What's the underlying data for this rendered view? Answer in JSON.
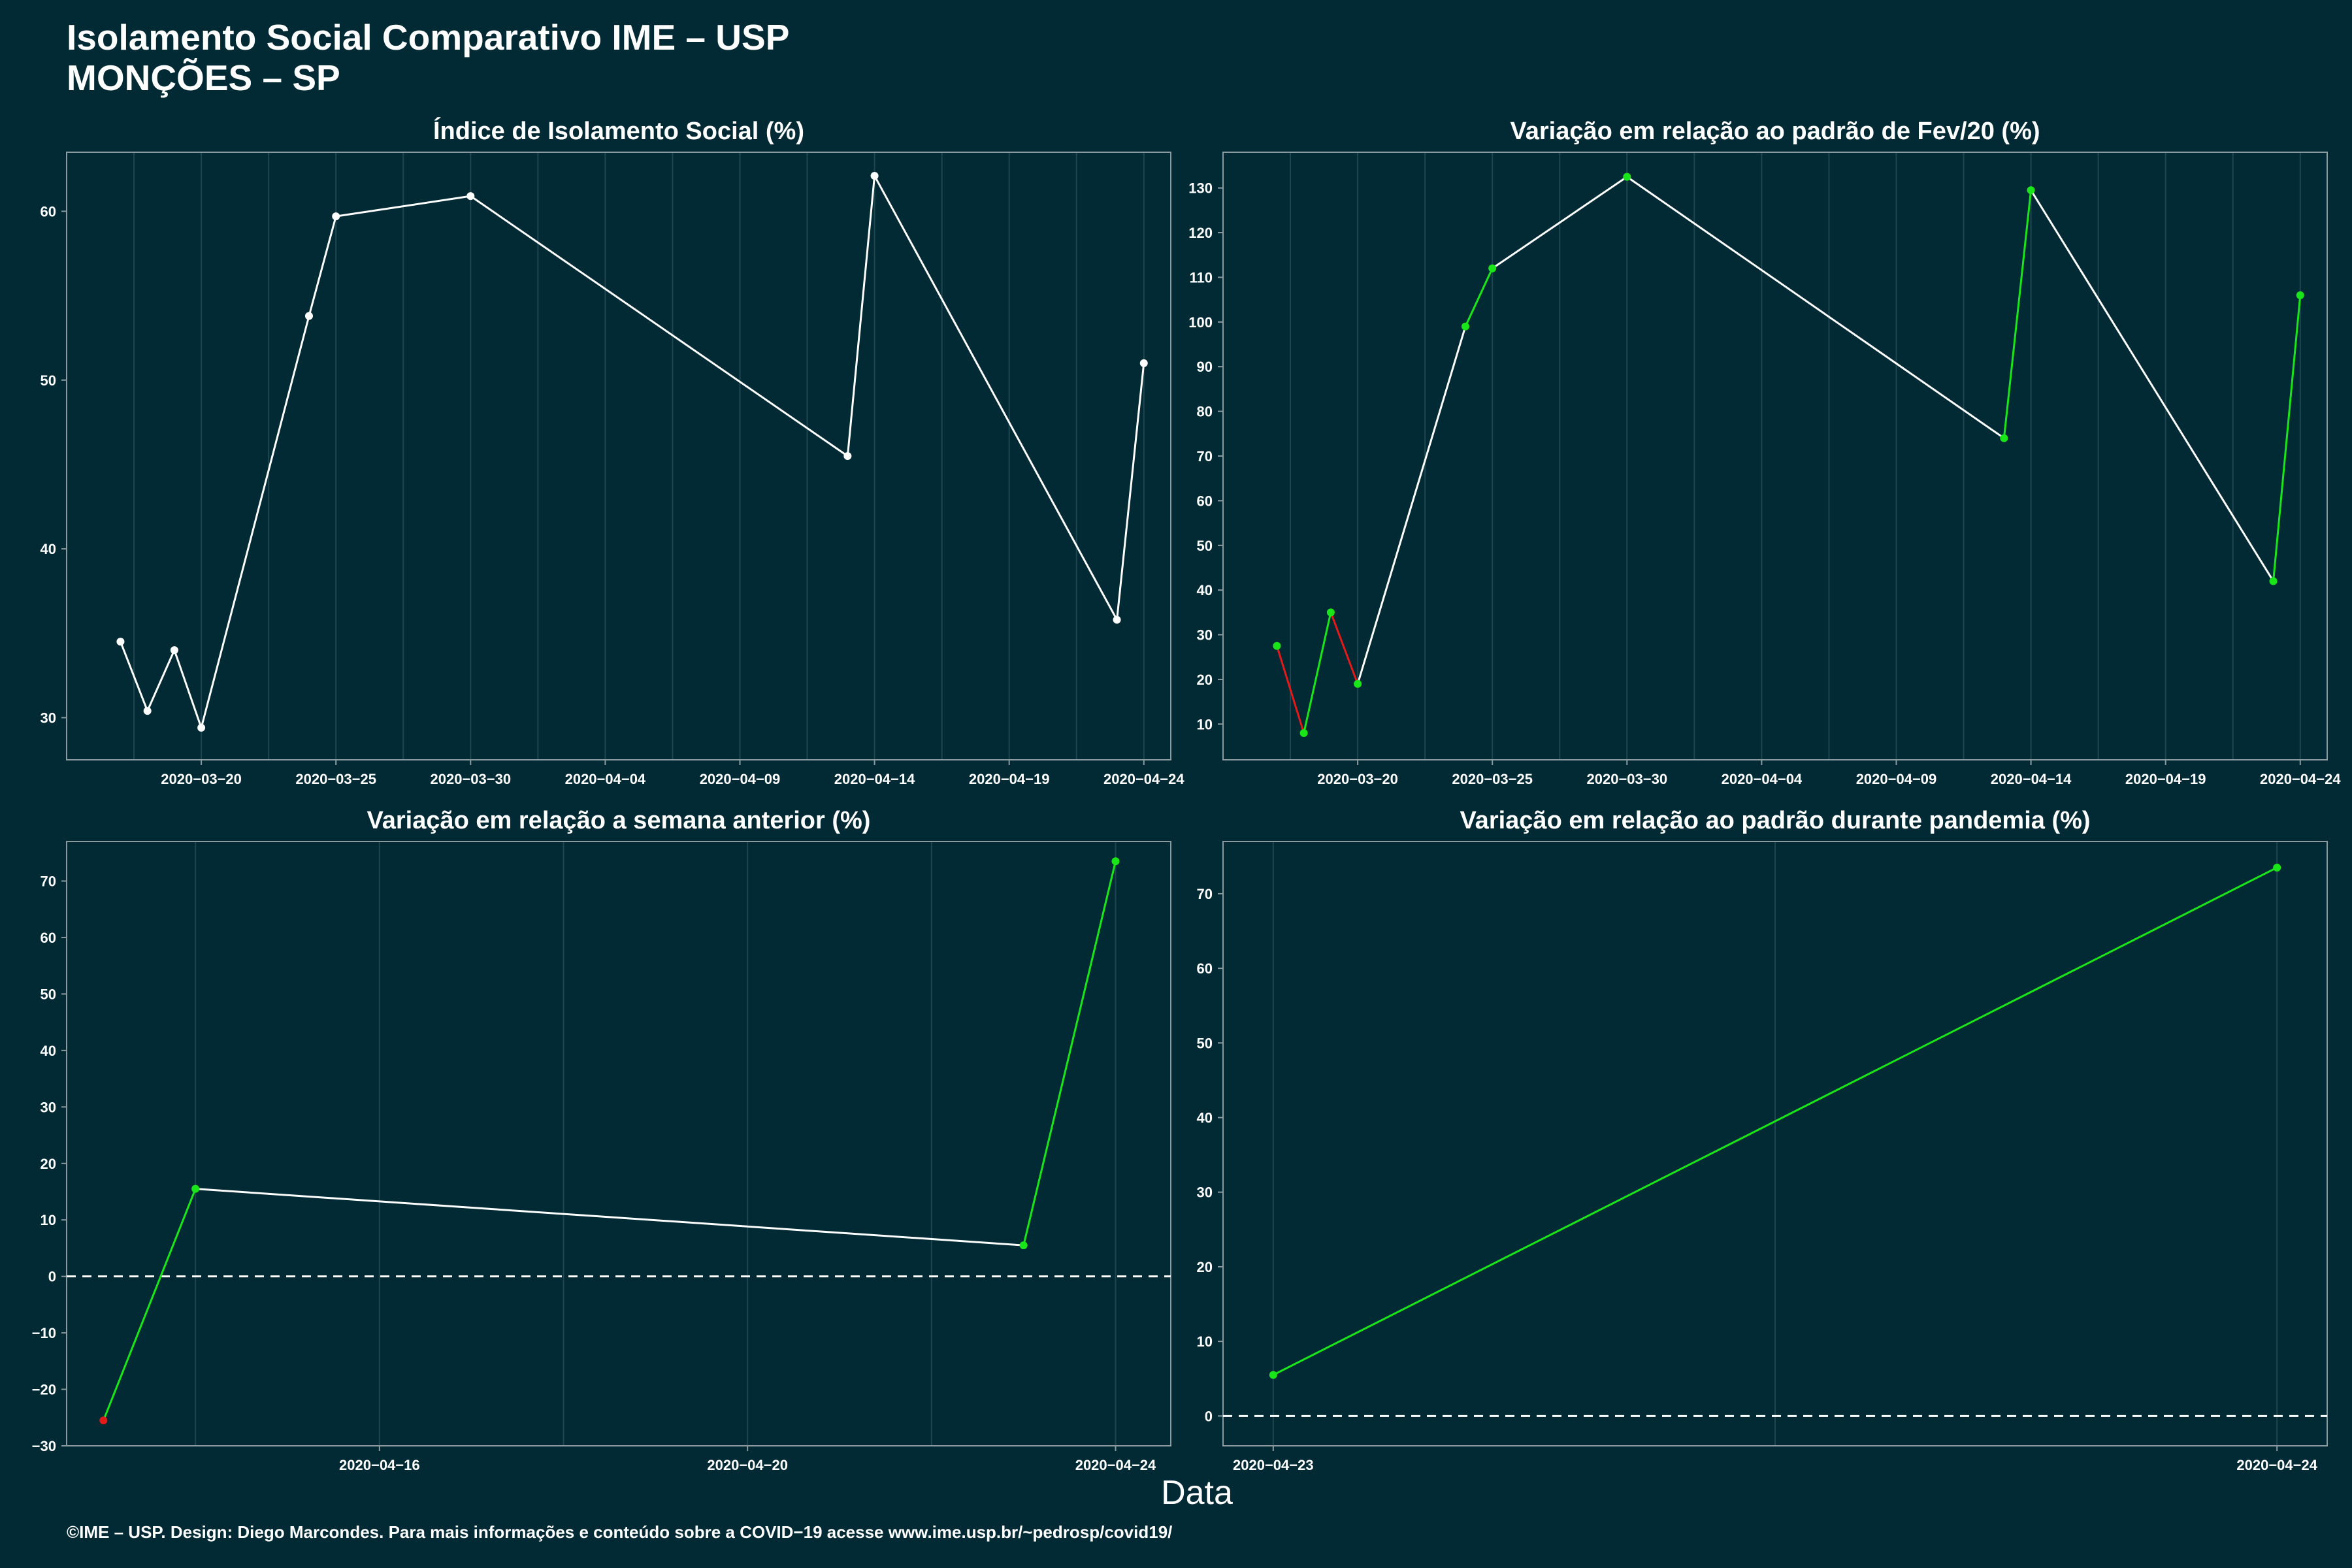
{
  "header": {
    "title": "Isolamento Social Comparativo IME – USP",
    "subtitle": "MONÇÕES – SP"
  },
  "footer": {
    "xlabel": "Data",
    "credit": "©IME – USP. Design: Diego Marcondes. Para mais informações e conteúdo sobre a COVID−19 acesse www.ime.usp.br/~pedrosp/covid19/"
  },
  "colors": {
    "background": "#012a35",
    "line_default": "#ffffff",
    "line_up": "#19e619",
    "line_down": "#e61919",
    "grid": "#1f4650",
    "axis": "#8a9a9f"
  },
  "chart_data": [
    {
      "type": "line",
      "title": "Índice de Isolamento Social (%)",
      "x_type": "date",
      "x": [
        "2020-03-17",
        "2020-03-18",
        "2020-03-19",
        "2020-03-20",
        "2020-03-24",
        "2020-03-25",
        "2020-03-30",
        "2020-04-13",
        "2020-04-14",
        "2020-04-23",
        "2020-04-24"
      ],
      "y": [
        34.5,
        30.4,
        34.0,
        29.4,
        53.8,
        59.7,
        60.9,
        45.5,
        62.1,
        35.8,
        51.0
      ],
      "xlim": [
        "2020-03-15",
        "2020-04-25"
      ],
      "ylim": [
        27.5,
        63.5
      ],
      "xticks": [
        "2020-03-20",
        "2020-03-25",
        "2020-03-30",
        "2020-04-04",
        "2020-04-09",
        "2020-04-14",
        "2020-04-19",
        "2020-04-24"
      ],
      "yticks": [
        30,
        40,
        50,
        60
      ],
      "color_mode": "white"
    },
    {
      "type": "line",
      "title": "Variação em relação ao padrão de Fev/20 (%)",
      "x_type": "date",
      "x": [
        "2020-03-17",
        "2020-03-18",
        "2020-03-19",
        "2020-03-20",
        "2020-03-24",
        "2020-03-25",
        "2020-03-30",
        "2020-04-13",
        "2020-04-14",
        "2020-04-23",
        "2020-04-24"
      ],
      "y": [
        27.5,
        8.0,
        35.0,
        19.0,
        99.0,
        112.0,
        132.5,
        74.0,
        129.5,
        42.0,
        106.0
      ],
      "xlim": [
        "2020-03-15",
        "2020-04-25"
      ],
      "ylim": [
        2,
        138
      ],
      "xticks": [
        "2020-03-20",
        "2020-03-25",
        "2020-03-30",
        "2020-04-04",
        "2020-04-09",
        "2020-04-14",
        "2020-04-19",
        "2020-04-24"
      ],
      "yticks": [
        10,
        20,
        30,
        40,
        50,
        60,
        70,
        80,
        90,
        100,
        110,
        120,
        130
      ],
      "color_mode": "segment_positive"
    },
    {
      "type": "line",
      "title": "Variação em relação a semana anterior (%)",
      "x_type": "date",
      "x": [
        "2020-04-13",
        "2020-04-14",
        "2020-04-23",
        "2020-04-24"
      ],
      "y": [
        -25.5,
        15.5,
        5.5,
        73.5
      ],
      "xlim": [
        "2020-04-12.6",
        "2020-04-24.6"
      ],
      "ylim": [
        -30,
        77
      ],
      "xticks": [
        "2020-04-16",
        "2020-04-20",
        "2020-04-24"
      ],
      "yticks": [
        -30,
        -20,
        -10,
        0,
        10,
        20,
        30,
        40,
        50,
        60,
        70
      ],
      "zero_line": true,
      "color_mode": "segment_positive_points_sign"
    },
    {
      "type": "line",
      "title": "Variação em relação ao padrão durante pandemia (%)",
      "x_type": "date",
      "x": [
        "2020-04-23",
        "2020-04-24"
      ],
      "y": [
        5.5,
        73.5
      ],
      "xlim": [
        "2020-04-22.95",
        "2020-04-24.05"
      ],
      "ylim": [
        -4,
        77
      ],
      "xticks": [
        "2020-04-23",
        "2020-04-24"
      ],
      "yticks": [
        0,
        10,
        20,
        30,
        40,
        50,
        60,
        70
      ],
      "zero_line": true,
      "color_mode": "all_green"
    }
  ]
}
